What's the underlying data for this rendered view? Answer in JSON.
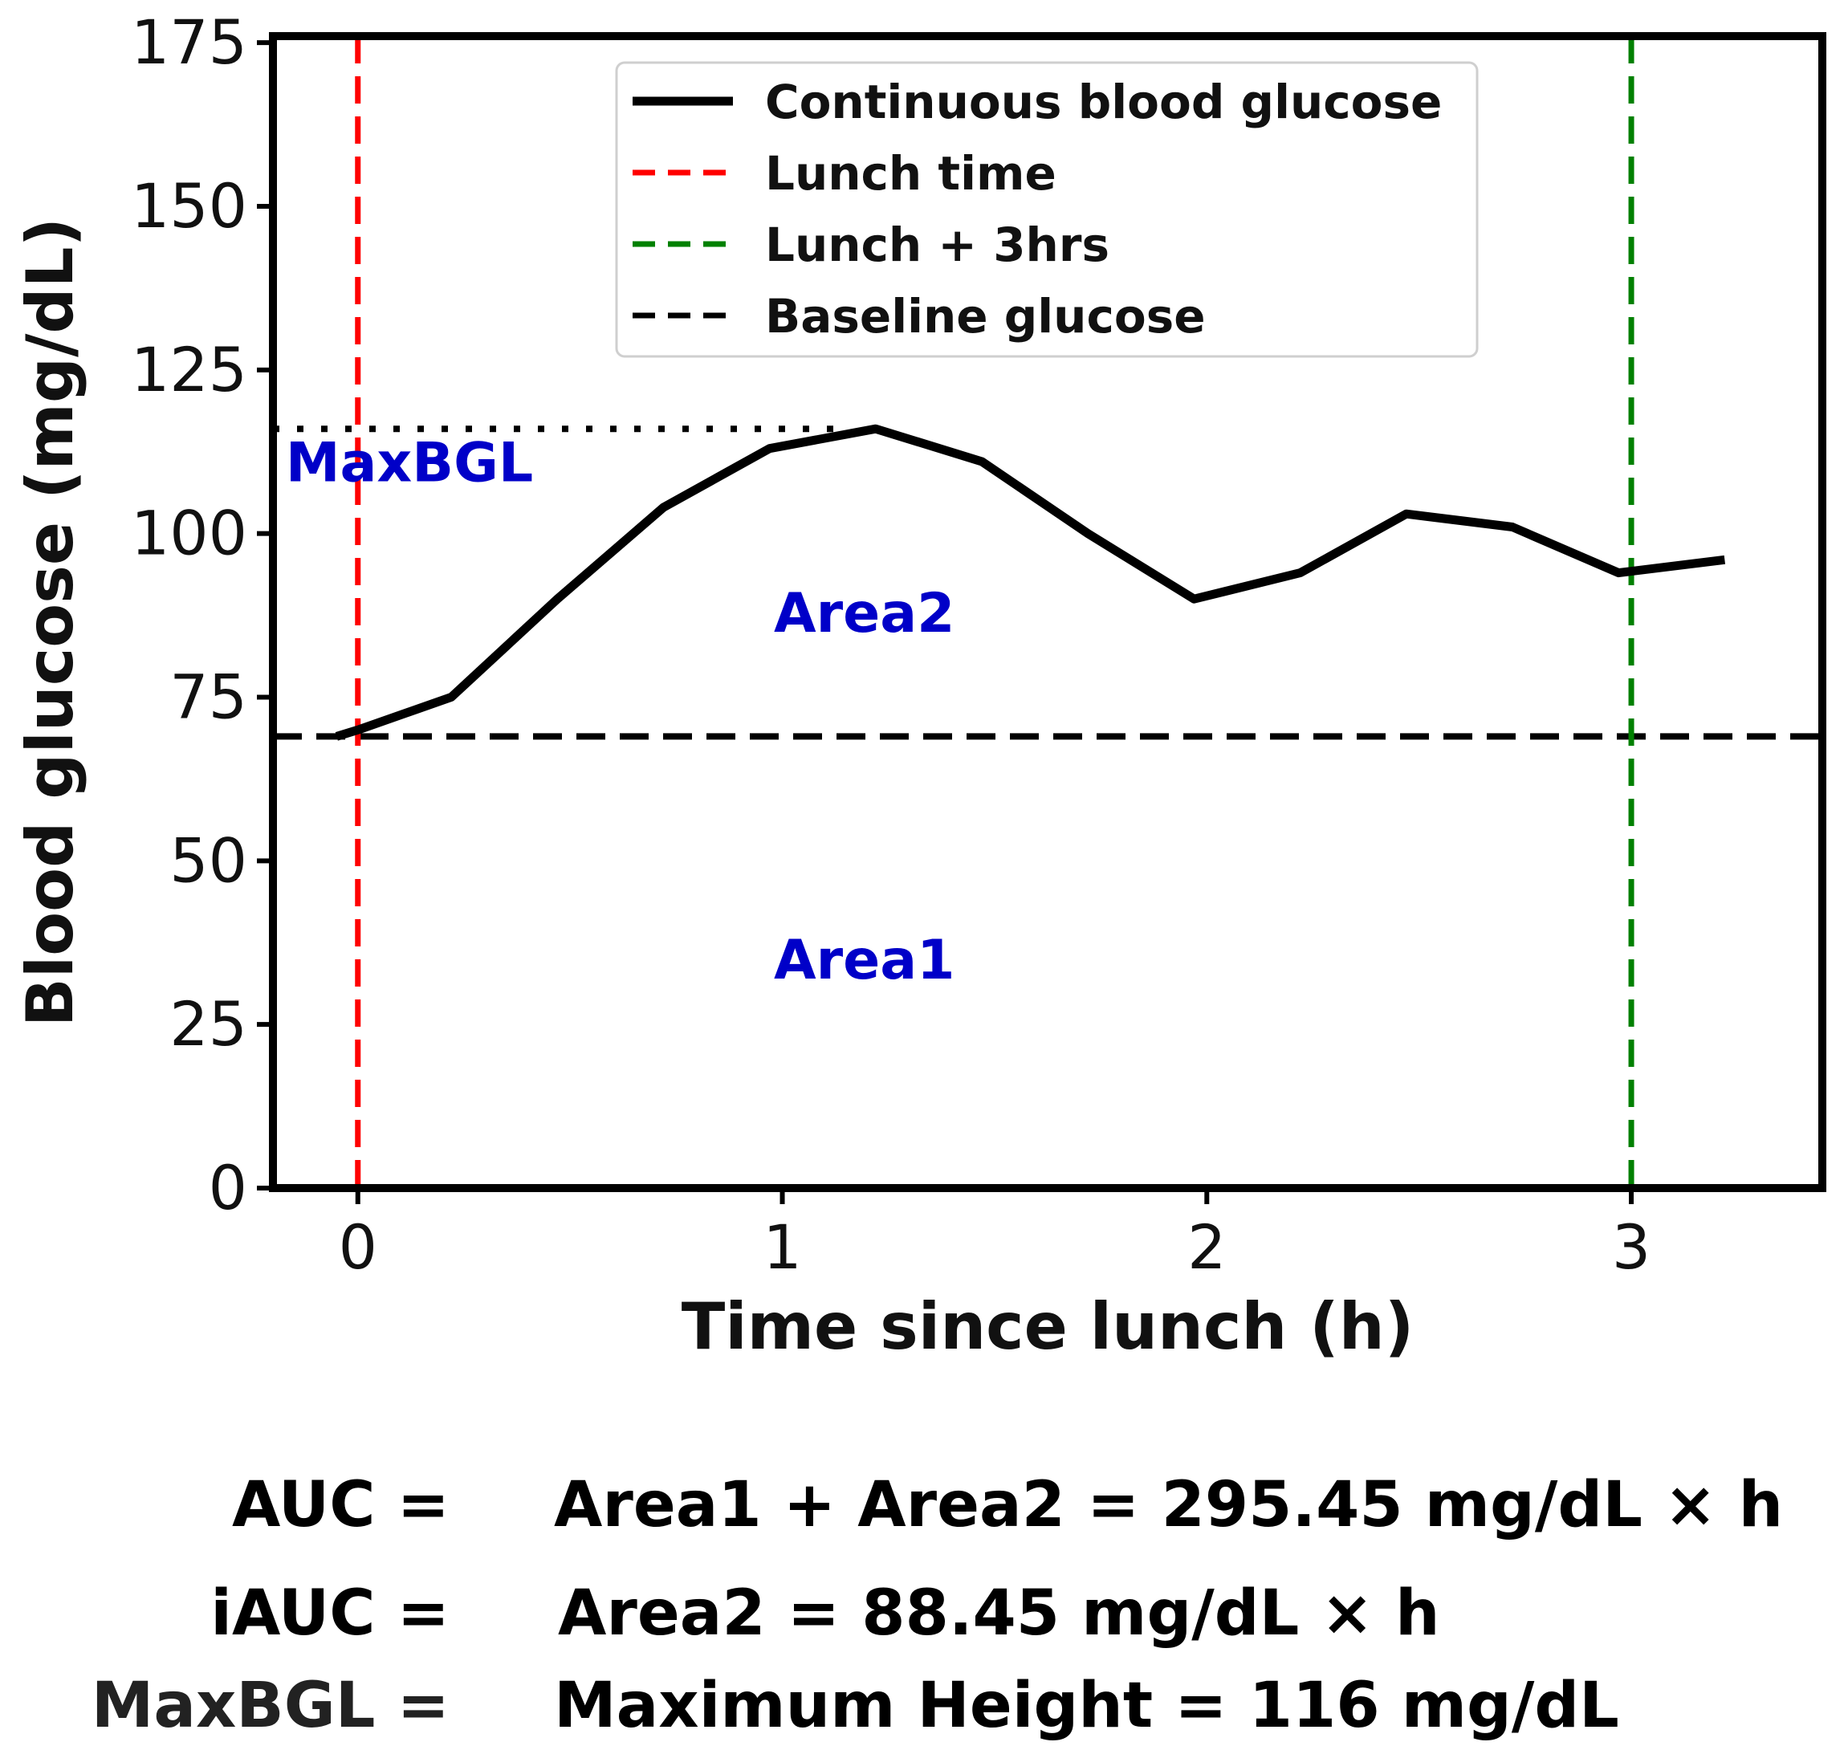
{
  "chart_data": {
    "type": "line",
    "xlabel": "Time since lunch (h)",
    "ylabel": "Blood glucose (mg/dL)",
    "xlim": [
      -0.2,
      3.45
    ],
    "ylim": [
      0,
      176
    ],
    "xticks": [
      0,
      1,
      2,
      3
    ],
    "yticks": [
      0,
      25,
      50,
      75,
      100,
      125,
      150,
      175
    ],
    "series": [
      {
        "name": "Continuous blood glucose",
        "x": [
          -0.05,
          0.0,
          0.22,
          0.47,
          0.72,
          0.97,
          1.22,
          1.47,
          1.72,
          1.97,
          2.22,
          2.47,
          2.72,
          2.97,
          3.22
        ],
        "y": [
          69,
          70,
          75,
          90,
          104,
          113,
          116,
          111,
          100,
          90,
          94,
          103,
          101,
          94,
          96
        ],
        "color": "#000000"
      }
    ],
    "vlines": [
      {
        "name": "Lunch time",
        "x": 0,
        "color": "#ff0000"
      },
      {
        "name": "Lunch + 3hrs",
        "x": 3,
        "color": "#008000"
      }
    ],
    "hlines": [
      {
        "name": "Baseline glucose",
        "y": 69,
        "color": "#000000"
      }
    ],
    "maxbgl_line": {
      "y": 116,
      "x_end": 1.15
    },
    "legend": [
      {
        "label": "Continuous blood glucose",
        "style": "solid",
        "color": "#000000"
      },
      {
        "label": "Lunch time",
        "style": "dashed",
        "color": "#ff0000"
      },
      {
        "label": "Lunch + 3hrs",
        "style": "dashed",
        "color": "#008000"
      },
      {
        "label": "Baseline glucose",
        "style": "dashed",
        "color": "#000000"
      }
    ],
    "legend_position": "top-right",
    "annotations": [
      {
        "text": "MaxBGL",
        "x": -0.17,
        "y": 108
      },
      {
        "text": "Area2",
        "x": 0.98,
        "y": 85
      },
      {
        "text": "Area1",
        "x": 0.98,
        "y": 32
      }
    ]
  },
  "formulas": {
    "auc": {
      "label": "AUC =",
      "expr": "Area1 + Area2  = 295.45 mg/dL × h"
    },
    "iauc": {
      "label": "iAUC =",
      "expr": "Area2 = 88.45 mg/dL × h"
    },
    "maxbgl": {
      "label": "MaxBGL =",
      "expr": "Maximum Height = 116 mg/dL"
    }
  },
  "colors": {
    "annotation": "#0000c8",
    "formula_last": "#222222"
  }
}
